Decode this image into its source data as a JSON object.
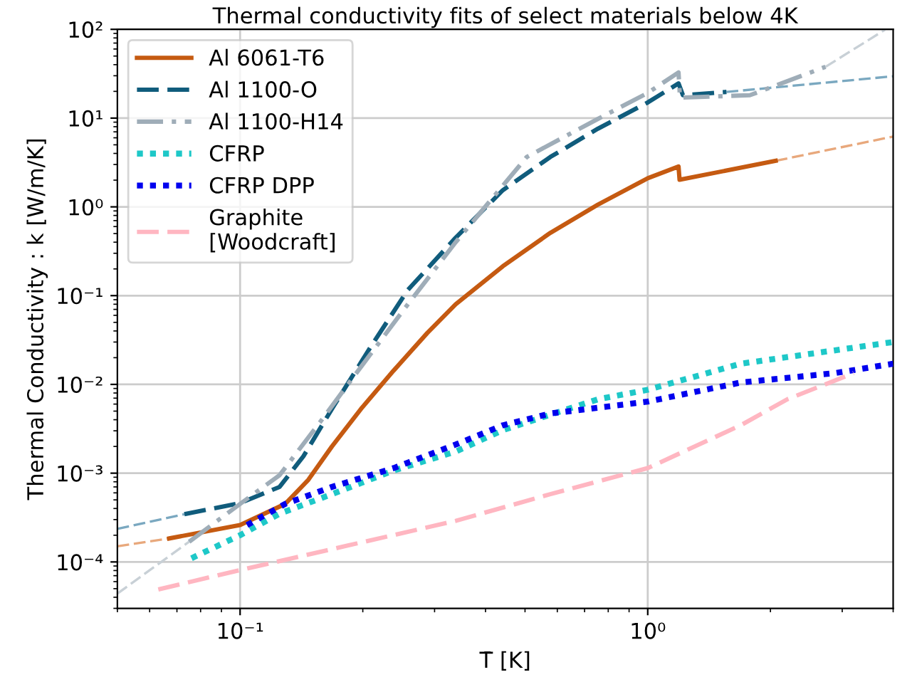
{
  "chart_data": {
    "type": "line",
    "title": "Thermal conductivity fits of select materials below 4K",
    "xlabel": "T̄ [K]",
    "ylabel": "Thermal Conductivity : k [W/m/K]",
    "log": "xy",
    "grid": true,
    "legend": "top left",
    "marker": "none",
    "xlim": [
      0.05,
      4
    ],
    "ylim": [
      3e-05,
      100
    ],
    "xticks": [
      {
        "value": 0.1,
        "label": "10⁻¹"
      },
      {
        "value": 1,
        "label": "10⁰"
      }
    ],
    "yticks": [
      {
        "value": 0.0001,
        "label": "10⁻⁴"
      },
      {
        "value": 0.001,
        "label": "10⁻³"
      },
      {
        "value": 0.01,
        "label": "10⁻²"
      },
      {
        "value": 0.1,
        "label": "10⁻¹"
      },
      {
        "value": 1,
        "label": "10⁰"
      },
      {
        "value": 10,
        "label": "10¹"
      },
      {
        "value": 100,
        "label": "10²"
      }
    ],
    "series": [
      {
        "name": "Al 6061-T6",
        "color": "#c55a11",
        "line_style": "solid",
        "x": [
          0.067,
          0.1,
          0.129,
          0.147,
          0.168,
          0.198,
          0.238,
          0.288,
          0.338,
          0.441,
          0.577,
          0.755,
          1.0,
          1.19,
          1.197,
          2.06
        ],
        "values": [
          0.000184,
          0.00026,
          0.00045,
          0.00084,
          0.002,
          0.0053,
          0.0143,
          0.038,
          0.08,
          0.214,
          0.51,
          1.06,
          2.1,
          2.85,
          2.02,
          3.3
        ]
      },
      {
        "name": "Al 1100-O",
        "color": "#105c7c",
        "line_style": "dashed",
        "x": [
          0.073,
          0.1,
          0.125,
          0.143,
          0.168,
          0.209,
          0.258,
          0.338,
          0.441,
          0.577,
          0.755,
          1.0,
          1.19,
          1.22,
          1.56
        ],
        "values": [
          0.000345,
          0.00046,
          0.0007,
          0.00155,
          0.0053,
          0.0264,
          0.116,
          0.449,
          1.54,
          3.65,
          7.6,
          15.0,
          24.6,
          18.1,
          19.7
        ]
      },
      {
        "name": "Al 1100-H14",
        "color": "#9fadb8",
        "line_style": "dashdot",
        "x": [
          0.075,
          0.1,
          0.125,
          0.16,
          0.187,
          0.258,
          0.338,
          0.505,
          0.755,
          1.0,
          1.19,
          1.2,
          1.78,
          2.73
        ],
        "values": [
          0.000169,
          0.00045,
          0.00095,
          0.0042,
          0.0111,
          0.08,
          0.4,
          3.65,
          9.8,
          19.2,
          32.7,
          17.0,
          18.1,
          37.8
        ]
      },
      {
        "name": "CFRP",
        "color": "#1ec8c8",
        "line_style": "dotted",
        "x": [
          0.076,
          0.1,
          0.125,
          0.168,
          0.238,
          0.338,
          0.441,
          0.755,
          1.0,
          1.69,
          4.0
        ],
        "values": [
          0.00011,
          0.0002,
          0.00035,
          0.00058,
          0.00107,
          0.00175,
          0.00305,
          0.0068,
          0.0087,
          0.0171,
          0.03
        ]
      },
      {
        "name": "CFRP DPP",
        "color": "#0000ee",
        "line_style": "dotted",
        "x": [
          0.104,
          0.129,
          0.168,
          0.238,
          0.338,
          0.441,
          0.577,
          1.0,
          1.69,
          2.88,
          4.0
        ],
        "values": [
          0.00026,
          0.00045,
          0.0007,
          0.00114,
          0.0021,
          0.00346,
          0.0047,
          0.0064,
          0.0105,
          0.0134,
          0.0171
        ]
      },
      {
        "name": "Graphite\n[Woodcraft]",
        "color": "#ffb6c1",
        "line_style": "dashed",
        "x": [
          0.063,
          0.1,
          0.338,
          0.577,
          1.0,
          1.69,
          2.2,
          3.2
        ],
        "values": [
          4.9e-05,
          8.1e-05,
          0.00029,
          0.00058,
          0.00114,
          0.00346,
          0.0068,
          0.0134
        ]
      },
      {
        "color": "#e8a87c",
        "line_style": "dashed",
        "x": [
          0.05,
          0.067
        ],
        "values": [
          0.00015,
          0.000184
        ]
      },
      {
        "color": "#e8a87c",
        "line_style": "dashed",
        "x": [
          2.06,
          4.0
        ],
        "values": [
          3.3,
          6.2
        ]
      },
      {
        "color": "#7aa8c0",
        "line_style": "dashed",
        "x": [
          0.05,
          0.073
        ],
        "values": [
          0.000236,
          0.000345
        ]
      },
      {
        "color": "#7aa8c0",
        "line_style": "dashed",
        "x": [
          1.56,
          4.0
        ],
        "values": [
          19.7,
          29.6
        ]
      },
      {
        "color": "#c8d0d6",
        "line_style": "dashed",
        "x": [
          0.05,
          0.075
        ],
        "values": [
          4.4e-05,
          0.000169
        ]
      },
      {
        "color": "#c8d0d6",
        "line_style": "dashed",
        "x": [
          2.73,
          3.82
        ],
        "values": [
          37.8,
          99
        ]
      }
    ]
  }
}
